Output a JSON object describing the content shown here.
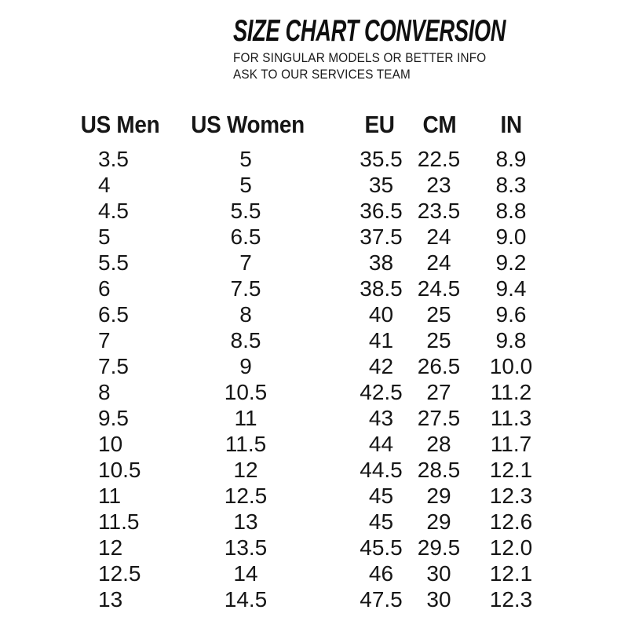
{
  "colors": {
    "background": "#ffffff",
    "text": "#161616"
  },
  "header": {
    "title": "SIZE CHART CONVERSION",
    "subtitle_line1": "FOR SINGULAR MODELS OR BETTER INFO",
    "subtitle_line2": "ASK TO OUR SERVICES TEAM"
  },
  "chart_data": {
    "type": "table",
    "title": "SIZE CHART CONVERSION",
    "columns": [
      "US Men",
      "US Women",
      "EU",
      "CM",
      "IN"
    ],
    "rows": [
      [
        "3.5",
        "5",
        "35.5",
        "22.5",
        "8.9"
      ],
      [
        "4",
        "5",
        "35",
        "23",
        "8.3"
      ],
      [
        "4.5",
        "5.5",
        "36.5",
        "23.5",
        "8.8"
      ],
      [
        "5",
        "6.5",
        "37.5",
        "24",
        "9.0"
      ],
      [
        "5.5",
        "7",
        "38",
        "24",
        "9.2"
      ],
      [
        "6",
        "7.5",
        "38.5",
        "24.5",
        "9.4"
      ],
      [
        "6.5",
        "8",
        "40",
        "25",
        "9.6"
      ],
      [
        "7",
        "8.5",
        "41",
        "25",
        "9.8"
      ],
      [
        "7.5",
        "9",
        "42",
        "26.5",
        "10.0"
      ],
      [
        "8",
        "10.5",
        "42.5",
        "27",
        "11.2"
      ],
      [
        "9.5",
        "11",
        "43",
        "27.5",
        "11.3"
      ],
      [
        "10",
        "11.5",
        "44",
        "28",
        "11.7"
      ],
      [
        "10.5",
        "12",
        "44.5",
        "28.5",
        "12.1"
      ],
      [
        "11",
        "12.5",
        "45",
        "29",
        "12.3"
      ],
      [
        "11.5",
        "13",
        "45",
        "29",
        "12.6"
      ],
      [
        "12",
        "13.5",
        "45.5",
        "29.5",
        "12.0"
      ],
      [
        "12.5",
        "14",
        "46",
        "30",
        "12.1"
      ],
      [
        "13",
        "14.5",
        "47.5",
        "30",
        "12.3"
      ]
    ]
  }
}
